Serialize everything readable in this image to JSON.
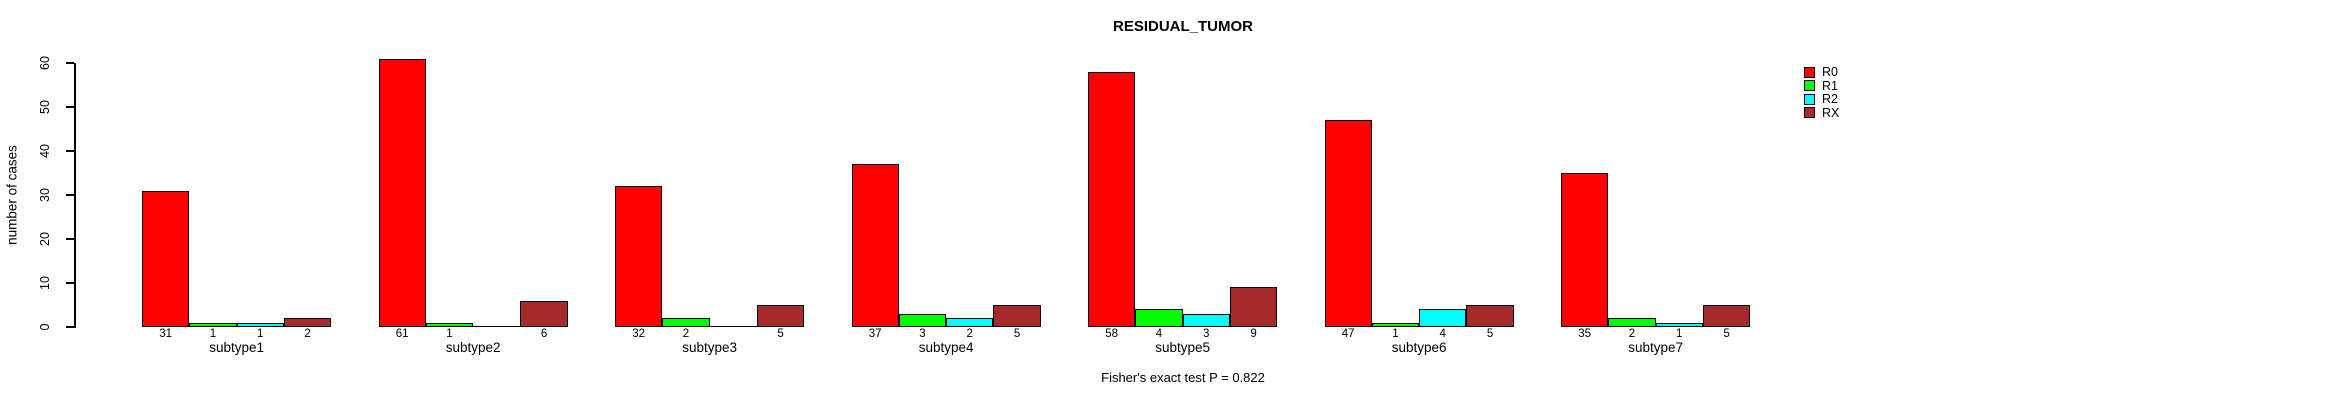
{
  "chart_data": {
    "type": "bar",
    "title": "RESIDUAL_TUMOR",
    "ylabel": "number of cases",
    "xlabel": "",
    "categories": [
      "subtype1",
      "subtype2",
      "subtype3",
      "subtype4",
      "subtype5",
      "subtype6",
      "subtype7"
    ],
    "series": [
      {
        "name": "R0",
        "color": "#FF0000",
        "values": [
          31,
          61,
          32,
          37,
          58,
          47,
          35
        ]
      },
      {
        "name": "R1",
        "color": "#00FF00",
        "values": [
          1,
          1,
          2,
          3,
          4,
          1,
          2
        ]
      },
      {
        "name": "R2",
        "color": "#00FFFF",
        "values": [
          1,
          0,
          0,
          2,
          3,
          4,
          1
        ]
      },
      {
        "name": "RX",
        "color": "#A52A2A",
        "values": [
          2,
          6,
          5,
          5,
          9,
          5,
          5
        ]
      }
    ],
    "yticks": [
      0,
      10,
      20,
      30,
      40,
      50,
      60
    ],
    "ylim": [
      0,
      60
    ],
    "grid": false,
    "legend_position": "right",
    "legend_labels": [
      "R0",
      "R1",
      "R2",
      "RX"
    ],
    "bar_value_labels_shown": true,
    "zero_values_unlabeled": true,
    "annotation": "Fisher's exact test P = 0.822"
  }
}
